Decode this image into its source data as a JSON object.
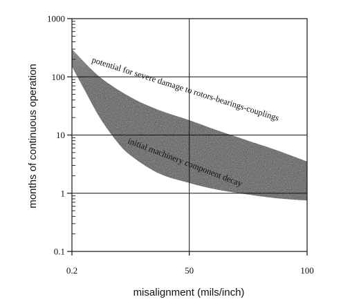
{
  "chart_data": {
    "type": "area",
    "title": "",
    "xlabel": "misalignment (mils/inch)",
    "ylabel": "months of continuous operation",
    "x_tick_labels": [
      "0.2",
      "50",
      "100"
    ],
    "x_ticks": [
      0.2,
      50,
      100
    ],
    "xlim": [
      0.2,
      100
    ],
    "y_scale": "log",
    "y_tick_labels": [
      "0.1",
      "1",
      "10",
      "100",
      "1000"
    ],
    "y_ticks": [
      0.1,
      1,
      10,
      100,
      1000
    ],
    "ylim": [
      0.1,
      1000
    ],
    "grid": true,
    "legend": "none",
    "region": {
      "shading": "gradient, light grey at the upper edge to dark grey at the lower edge",
      "upper_boundary": [
        {
          "x": 0.2,
          "y": 300
        },
        {
          "x": 12,
          "y": 100
        },
        {
          "x": 25,
          "y": 45
        },
        {
          "x": 37,
          "y": 27
        },
        {
          "x": 50,
          "y": 18
        },
        {
          "x": 62,
          "y": 12
        },
        {
          "x": 75,
          "y": 8
        },
        {
          "x": 87,
          "y": 5.5
        },
        {
          "x": 100,
          "y": 3.5
        }
      ],
      "lower_boundary": [
        {
          "x": 0.2,
          "y": 150
        },
        {
          "x": 6,
          "y": 55
        },
        {
          "x": 12,
          "y": 20
        },
        {
          "x": 19,
          "y": 8
        },
        {
          "x": 25,
          "y": 4.5
        },
        {
          "x": 37,
          "y": 2.2
        },
        {
          "x": 50,
          "y": 1.5
        },
        {
          "x": 62,
          "y": 1.15
        },
        {
          "x": 75,
          "y": 0.95
        },
        {
          "x": 87,
          "y": 0.82
        },
        {
          "x": 100,
          "y": 0.75
        }
      ]
    },
    "annotations": [
      {
        "text": "potential for severe damage to rotors-bearings-couplings",
        "position": "along the upper edge of the shaded band"
      },
      {
        "text": "initial machinery component decay",
        "position": "along the lower edge of the shaded band"
      }
    ]
  },
  "colors": {
    "axis": "#111111",
    "grid": "#111111",
    "band_light": "#d8d8d8",
    "band_dark": "#1a1a1a"
  }
}
